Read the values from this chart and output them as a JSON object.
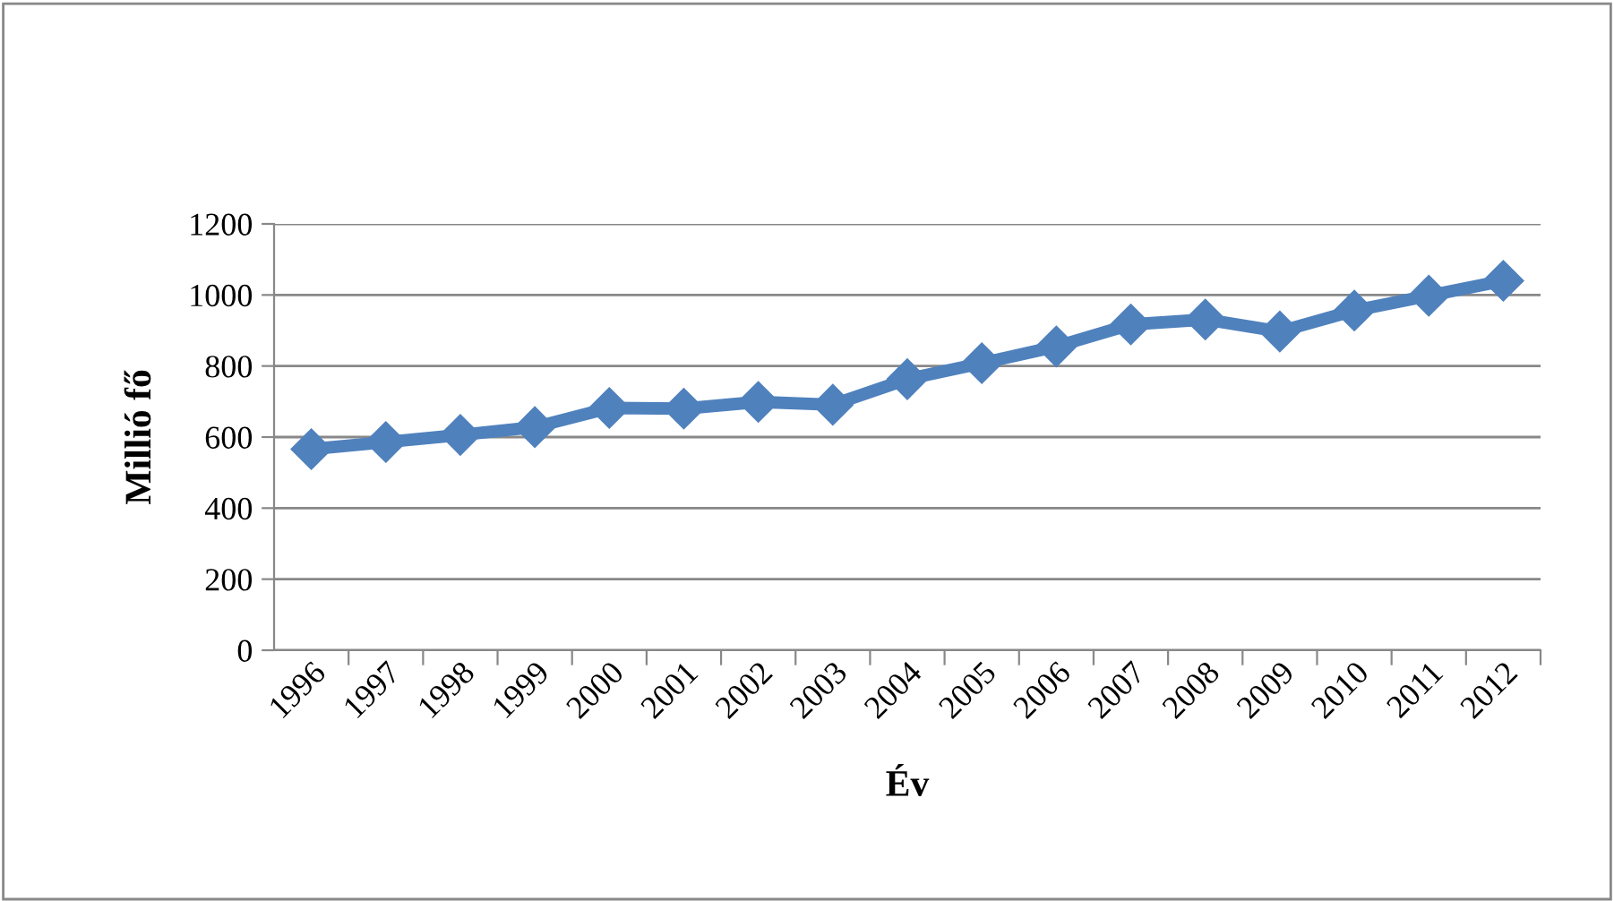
{
  "chart_data": {
    "type": "line",
    "xlabel": "Év",
    "ylabel": "Millió fő",
    "categories": [
      "1996",
      "1997",
      "1998",
      "1999",
      "2000",
      "2001",
      "2002",
      "2003",
      "2004",
      "2005",
      "2006",
      "2007",
      "2008",
      "2009",
      "2010",
      "2011",
      "2012"
    ],
    "series": [
      {
        "color": "#4f81bd",
        "values": [
          566,
          586,
          606,
          628,
          682,
          680,
          699,
          691,
          763,
          808,
          855,
          917,
          931,
          897,
          956,
          998,
          1040
        ]
      }
    ],
    "ylim": [
      0,
      1200
    ],
    "yticks": [
      0,
      200,
      400,
      600,
      800,
      1000,
      1200
    ],
    "grid": "y",
    "marker": "diamond",
    "line_style": "solid"
  }
}
